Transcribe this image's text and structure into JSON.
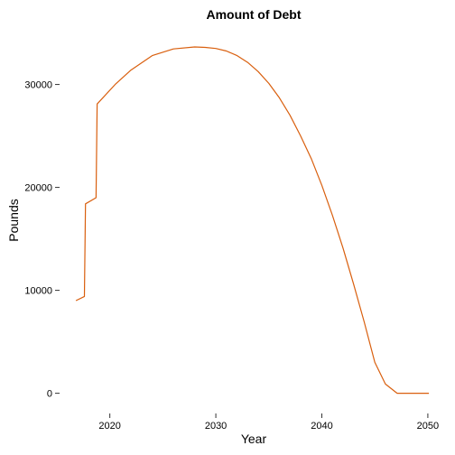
{
  "chart_data": {
    "type": "line",
    "title": "Amount of Debt",
    "xlabel": "Year",
    "ylabel": "Pounds",
    "xlim": [
      2015.6,
      2051.2
    ],
    "ylim": [
      -1700,
      35400
    ],
    "x_ticks": [
      2020,
      2030,
      2040,
      2050
    ],
    "y_ticks": [
      0,
      10000,
      20000,
      30000
    ],
    "grid": false,
    "legend": "none",
    "line_color": "#D95F0E",
    "series": [
      {
        "x": [
          2016.8,
          2017.6,
          2017.7,
          2018.7,
          2018.8,
          2020.5,
          2022,
          2024,
          2026,
          2028,
          2029,
          2030,
          2031,
          2032,
          2033,
          2034,
          2035,
          2036,
          2037,
          2038,
          2039,
          2040,
          2041,
          2042,
          2043,
          2044,
          2045,
          2046,
          2047.1,
          2050.1
        ],
        "y": [
          9000,
          9400,
          18400,
          19000,
          28100,
          30000,
          31400,
          32800,
          33450,
          33650,
          33600,
          33500,
          33250,
          32800,
          32150,
          31250,
          30100,
          28700,
          27000,
          25000,
          22800,
          20200,
          17300,
          14100,
          10600,
          6900,
          3000,
          900,
          0,
          0
        ]
      }
    ]
  }
}
